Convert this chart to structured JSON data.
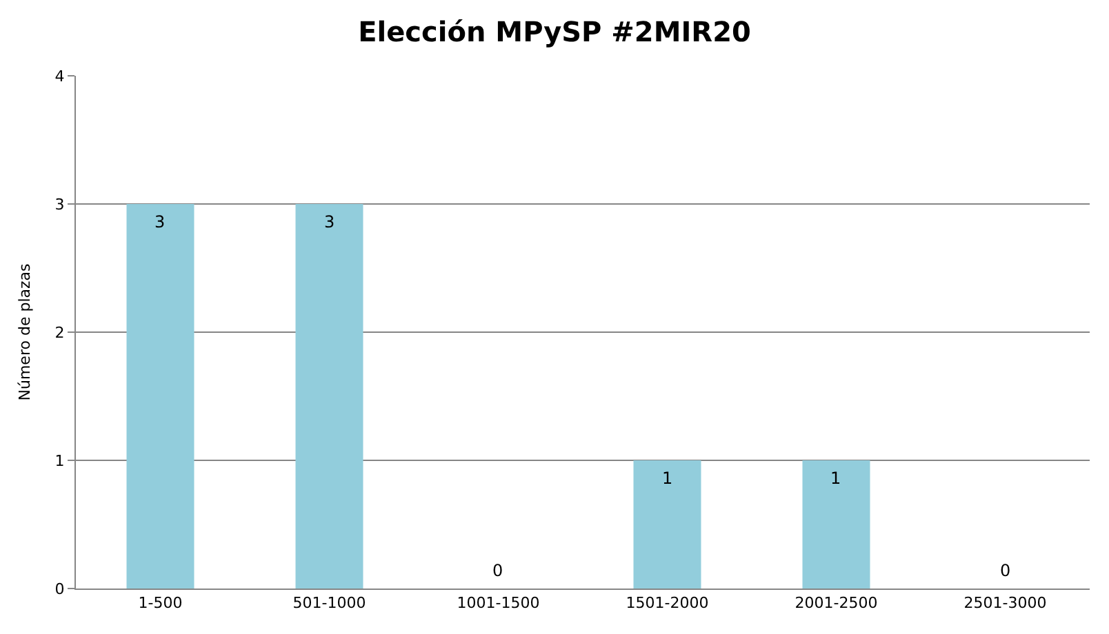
{
  "chart_data": {
    "type": "bar",
    "title": "Elección MPySP #2MIR20",
    "ylabel": "Número de plazas",
    "categories": [
      "1-500",
      "501-1000",
      "1001-1500",
      "1501-2000",
      "2001-2500",
      "2501-3000"
    ],
    "values": [
      3,
      3,
      0,
      1,
      1,
      0
    ],
    "color": "#92cddc",
    "ylim": [
      0,
      4
    ],
    "yticks": [
      0,
      1,
      2,
      3,
      4
    ],
    "grid": "y",
    "data_labels": true,
    "legend": false
  }
}
